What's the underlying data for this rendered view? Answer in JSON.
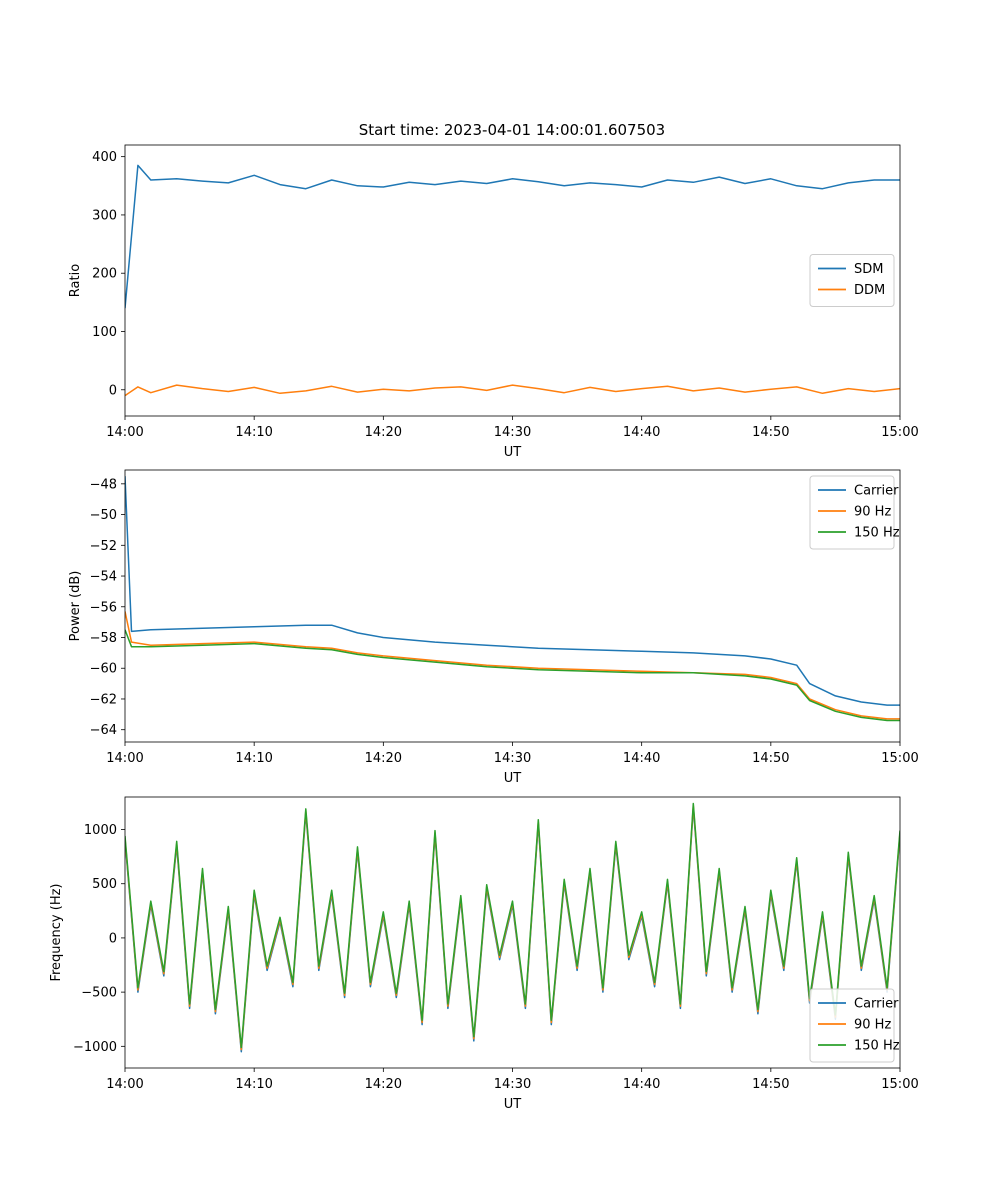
{
  "figure_title": "Start time: 2023-04-01 14:00:01.607503",
  "colors": {
    "blue": "#1f77b4",
    "orange": "#ff7f0e",
    "green": "#2ca02c"
  },
  "chart_data": [
    {
      "type": "line",
      "title": "Start time: 2023-04-01 14:00:01.607503",
      "xlabel": "UT",
      "ylabel": "Ratio",
      "xlim": [
        "14:00",
        "15:00"
      ],
      "ylim": [
        -45,
        420
      ],
      "xticks": [
        "14:00",
        "14:10",
        "14:20",
        "14:30",
        "14:40",
        "14:50",
        "15:00"
      ],
      "yticks": [
        0,
        100,
        200,
        300,
        400
      ],
      "legend_position": "center-right",
      "grid": false,
      "series": [
        {
          "name": "SDM",
          "color": "#1f77b4",
          "x": [
            "14:00",
            "14:01",
            "14:02",
            "14:04",
            "14:06",
            "14:08",
            "14:10",
            "14:12",
            "14:14",
            "14:16",
            "14:18",
            "14:20",
            "14:22",
            "14:24",
            "14:26",
            "14:28",
            "14:30",
            "14:32",
            "14:34",
            "14:36",
            "14:38",
            "14:40",
            "14:42",
            "14:44",
            "14:46",
            "14:48",
            "14:50",
            "14:52",
            "14:54",
            "14:56",
            "14:58",
            "15:00"
          ],
          "values": [
            140,
            385,
            360,
            362,
            358,
            355,
            368,
            352,
            345,
            360,
            350,
            348,
            356,
            352,
            358,
            354,
            362,
            357,
            350,
            355,
            352,
            348,
            360,
            356,
            365,
            354,
            362,
            350,
            345,
            355,
            360,
            360
          ]
        },
        {
          "name": "DDM",
          "color": "#ff7f0e",
          "x": [
            "14:00",
            "14:01",
            "14:02",
            "14:04",
            "14:06",
            "14:08",
            "14:10",
            "14:12",
            "14:14",
            "14:16",
            "14:18",
            "14:20",
            "14:22",
            "14:24",
            "14:26",
            "14:28",
            "14:30",
            "14:32",
            "14:34",
            "14:36",
            "14:38",
            "14:40",
            "14:42",
            "14:44",
            "14:46",
            "14:48",
            "14:50",
            "14:52",
            "14:54",
            "14:56",
            "14:58",
            "15:00"
          ],
          "values": [
            -10,
            5,
            -5,
            8,
            2,
            -3,
            4,
            -6,
            -2,
            6,
            -4,
            1,
            -2,
            3,
            5,
            -1,
            8,
            2,
            -5,
            4,
            -3,
            2,
            6,
            -2,
            3,
            -4,
            1,
            5,
            -6,
            2,
            -3,
            2
          ]
        }
      ]
    },
    {
      "type": "line",
      "title": "",
      "xlabel": "UT",
      "ylabel": "Power (dB)",
      "xlim": [
        "14:00",
        "15:00"
      ],
      "ylim": [
        -64.8,
        -47.1
      ],
      "xticks": [
        "14:00",
        "14:10",
        "14:20",
        "14:30",
        "14:40",
        "14:50",
        "15:00"
      ],
      "yticks": [
        -48,
        -50,
        -52,
        -54,
        -56,
        -58,
        -60,
        -62,
        -64
      ],
      "legend_position": "top-right",
      "grid": false,
      "series": [
        {
          "name": "Carrier",
          "color": "#1f77b4",
          "x": [
            "14:00",
            "14:00:30",
            "14:02",
            "14:06",
            "14:10",
            "14:14",
            "14:16",
            "14:18",
            "14:20",
            "14:24",
            "14:28",
            "14:32",
            "14:36",
            "14:40",
            "14:44",
            "14:48",
            "14:50",
            "14:52",
            "14:53",
            "14:55",
            "14:57",
            "14:59",
            "15:00"
          ],
          "values": [
            -47.5,
            -57.6,
            -57.5,
            -57.4,
            -57.3,
            -57.2,
            -57.2,
            -57.7,
            -58.0,
            -58.3,
            -58.5,
            -58.7,
            -58.8,
            -58.9,
            -59.0,
            -59.2,
            -59.4,
            -59.8,
            -61.0,
            -61.8,
            -62.2,
            -62.4,
            -62.4
          ]
        },
        {
          "name": "90 Hz",
          "color": "#ff7f0e",
          "x": [
            "14:00",
            "14:00:30",
            "14:02",
            "14:06",
            "14:10",
            "14:14",
            "14:16",
            "14:18",
            "14:20",
            "14:24",
            "14:28",
            "14:32",
            "14:36",
            "14:40",
            "14:44",
            "14:48",
            "14:50",
            "14:52",
            "14:53",
            "14:55",
            "14:57",
            "14:59",
            "15:00"
          ],
          "values": [
            -56.3,
            -58.3,
            -58.5,
            -58.4,
            -58.3,
            -58.6,
            -58.7,
            -59.0,
            -59.2,
            -59.5,
            -59.8,
            -60.0,
            -60.1,
            -60.2,
            -60.3,
            -60.4,
            -60.6,
            -61.0,
            -62.0,
            -62.7,
            -63.1,
            -63.3,
            -63.3
          ]
        },
        {
          "name": "150 Hz",
          "color": "#2ca02c",
          "x": [
            "14:00",
            "14:00:30",
            "14:02",
            "14:06",
            "14:10",
            "14:14",
            "14:16",
            "14:18",
            "14:20",
            "14:24",
            "14:28",
            "14:32",
            "14:36",
            "14:40",
            "14:44",
            "14:48",
            "14:50",
            "14:52",
            "14:53",
            "14:55",
            "14:57",
            "14:59",
            "15:00"
          ],
          "values": [
            -57.5,
            -58.6,
            -58.6,
            -58.5,
            -58.4,
            -58.7,
            -58.8,
            -59.1,
            -59.3,
            -59.6,
            -59.9,
            -60.1,
            -60.2,
            -60.3,
            -60.3,
            -60.5,
            -60.7,
            -61.1,
            -62.1,
            -62.8,
            -63.2,
            -63.4,
            -63.4
          ]
        }
      ]
    },
    {
      "type": "line",
      "title": "",
      "xlabel": "UT",
      "ylabel": "Frequency (Hz)",
      "xlim": [
        "14:00",
        "15:00"
      ],
      "ylim": [
        -1200,
        1300
      ],
      "xticks": [
        "14:00",
        "14:10",
        "14:20",
        "14:30",
        "14:40",
        "14:50",
        "15:00"
      ],
      "yticks": [
        1000,
        500,
        0,
        -500,
        -1000
      ],
      "legend_position": "bottom-right",
      "grid": false,
      "series": [
        {
          "name": "Carrier",
          "color": "#1f77b4",
          "x": [
            "14:00",
            "14:01",
            "14:02",
            "14:03",
            "14:04",
            "14:05",
            "14:06",
            "14:07",
            "14:08",
            "14:09",
            "14:10",
            "14:11",
            "14:12",
            "14:13",
            "14:14",
            "14:15",
            "14:16",
            "14:17",
            "14:18",
            "14:19",
            "14:20",
            "14:21",
            "14:22",
            "14:23",
            "14:24",
            "14:25",
            "14:26",
            "14:27",
            "14:28",
            "14:29",
            "14:30",
            "14:31",
            "14:32",
            "14:33",
            "14:34",
            "14:35",
            "14:36",
            "14:37",
            "14:38",
            "14:39",
            "14:40",
            "14:41",
            "14:42",
            "14:43",
            "14:44",
            "14:45",
            "14:46",
            "14:47",
            "14:48",
            "14:49",
            "14:50",
            "14:51",
            "14:52",
            "14:53",
            "14:54",
            "14:55",
            "14:56",
            "14:57",
            "14:58",
            "14:59",
            "15:00"
          ],
          "values": [
            900,
            -500,
            300,
            -350,
            850,
            -650,
            600,
            -700,
            250,
            -1050,
            400,
            -300,
            150,
            -450,
            1150,
            -300,
            400,
            -550,
            800,
            -450,
            200,
            -550,
            300,
            -800,
            950,
            -650,
            350,
            -950,
            450,
            -200,
            300,
            -650,
            1050,
            -800,
            500,
            -300,
            600,
            -500,
            850,
            -200,
            200,
            -450,
            500,
            -650,
            1200,
            -350,
            600,
            -500,
            250,
            -700,
            400,
            -300,
            700,
            -600,
            200,
            -750,
            750,
            -300,
            350,
            -500,
            950
          ]
        },
        {
          "name": "90 Hz",
          "color": "#ff7f0e",
          "x": [
            "14:00",
            "14:01",
            "14:02",
            "14:03",
            "14:04",
            "14:05",
            "14:06",
            "14:07",
            "14:08",
            "14:09",
            "14:10",
            "14:11",
            "14:12",
            "14:13",
            "14:14",
            "14:15",
            "14:16",
            "14:17",
            "14:18",
            "14:19",
            "14:20",
            "14:21",
            "14:22",
            "14:23",
            "14:24",
            "14:25",
            "14:26",
            "14:27",
            "14:28",
            "14:29",
            "14:30",
            "14:31",
            "14:32",
            "14:33",
            "14:34",
            "14:35",
            "14:36",
            "14:37",
            "14:38",
            "14:39",
            "14:40",
            "14:41",
            "14:42",
            "14:43",
            "14:44",
            "14:45",
            "14:46",
            "14:47",
            "14:48",
            "14:49",
            "14:50",
            "14:51",
            "14:52",
            "14:53",
            "14:54",
            "14:55",
            "14:56",
            "14:57",
            "14:58",
            "14:59",
            "15:00"
          ],
          "values": [
            920,
            -480,
            320,
            -330,
            870,
            -630,
            620,
            -680,
            270,
            -1030,
            420,
            -280,
            170,
            -430,
            1170,
            -280,
            420,
            -530,
            820,
            -430,
            220,
            -530,
            320,
            -780,
            970,
            -630,
            370,
            -930,
            470,
            -180,
            320,
            -630,
            1070,
            -780,
            520,
            -280,
            620,
            -480,
            870,
            -180,
            220,
            -430,
            520,
            -630,
            1220,
            -330,
            620,
            -480,
            270,
            -680,
            420,
            -280,
            720,
            -580,
            220,
            -730,
            770,
            -280,
            370,
            -480,
            970
          ]
        },
        {
          "name": "150 Hz",
          "color": "#2ca02c",
          "x": [
            "14:00",
            "14:01",
            "14:02",
            "14:03",
            "14:04",
            "14:05",
            "14:06",
            "14:07",
            "14:08",
            "14:09",
            "14:10",
            "14:11",
            "14:12",
            "14:13",
            "14:14",
            "14:15",
            "14:16",
            "14:17",
            "14:18",
            "14:19",
            "14:20",
            "14:21",
            "14:22",
            "14:23",
            "14:24",
            "14:25",
            "14:26",
            "14:27",
            "14:28",
            "14:29",
            "14:30",
            "14:31",
            "14:32",
            "14:33",
            "14:34",
            "14:35",
            "14:36",
            "14:37",
            "14:38",
            "14:39",
            "14:40",
            "14:41",
            "14:42",
            "14:43",
            "14:44",
            "14:45",
            "14:46",
            "14:47",
            "14:48",
            "14:49",
            "14:50",
            "14:51",
            "14:52",
            "14:53",
            "14:54",
            "14:55",
            "14:56",
            "14:57",
            "14:58",
            "14:59",
            "15:00"
          ],
          "values": [
            940,
            -460,
            340,
            -310,
            890,
            -610,
            640,
            -660,
            290,
            -1010,
            440,
            -260,
            190,
            -410,
            1190,
            -260,
            440,
            -510,
            840,
            -410,
            240,
            -510,
            340,
            -760,
            990,
            -610,
            390,
            -910,
            490,
            -160,
            340,
            -610,
            1090,
            -760,
            540,
            -260,
            640,
            -460,
            890,
            -160,
            240,
            -410,
            540,
            -610,
            1240,
            -310,
            640,
            -460,
            290,
            -660,
            440,
            -260,
            740,
            -560,
            240,
            -710,
            790,
            -260,
            390,
            -460,
            990
          ]
        }
      ]
    }
  ]
}
